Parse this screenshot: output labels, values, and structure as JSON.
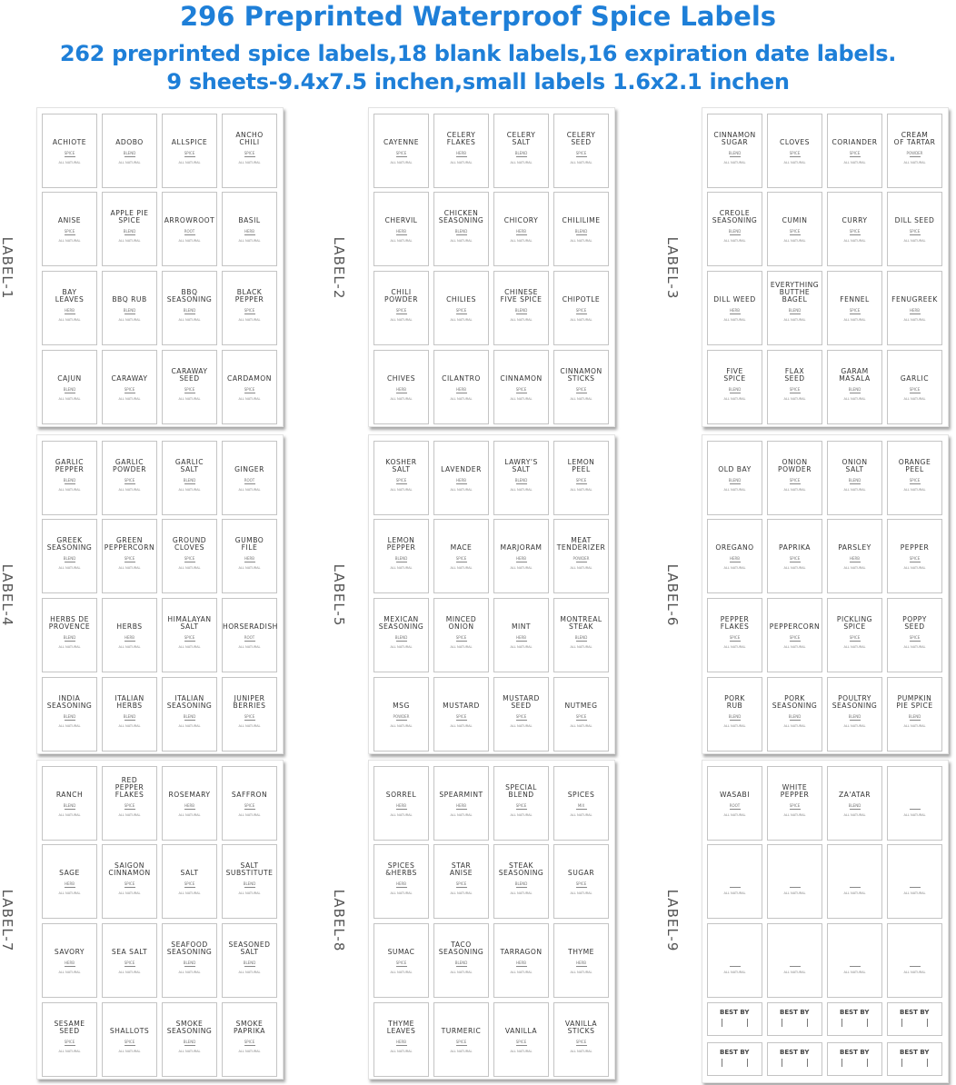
{
  "header": {
    "title": "296 Preprinted Waterproof Spice Labels",
    "subtitle1": "262 preprinted spice labels,18 blank labels,16 expiration date labels.",
    "subtitle2": "9 sheets-9.4x7.5 inchen,small labels 1.6x2.1 inchen",
    "color": "#1e7fd8"
  },
  "footer_text": "ALL NATURAL",
  "sheets": [
    {
      "label": "LABEL-1",
      "items": [
        {
          "name": "ACHIOTE",
          "type": "SPICE"
        },
        {
          "name": "ADOBO",
          "type": "BLEND"
        },
        {
          "name": "ALLSPICE",
          "type": "SPICE"
        },
        {
          "name": "ANCHO\nCHILI",
          "type": "SPICE"
        },
        {
          "name": "ANISE",
          "type": "SPICE"
        },
        {
          "name": "APPLE PIE\nSPICE",
          "type": "BLEND"
        },
        {
          "name": "ARROWROOT",
          "type": "ROOT"
        },
        {
          "name": "BASIL",
          "type": "HERB"
        },
        {
          "name": "BAY\nLEAVES",
          "type": "HERB"
        },
        {
          "name": "BBQ RUB",
          "type": "BLEND"
        },
        {
          "name": "BBQ\nSEASONING",
          "type": "BLEND"
        },
        {
          "name": "BLACK\nPEPPER",
          "type": "SPICE"
        },
        {
          "name": "CAJUN",
          "type": "BLEND"
        },
        {
          "name": "CARAWAY",
          "type": "SPICE"
        },
        {
          "name": "CARAWAY\nSEED",
          "type": "SPICE"
        },
        {
          "name": "CARDAMON",
          "type": "SPICE"
        }
      ]
    },
    {
      "label": "LABEL-2",
      "items": [
        {
          "name": "CAYENNE",
          "type": "SPICE"
        },
        {
          "name": "CELERY\nFLAKES",
          "type": "HERB"
        },
        {
          "name": "CELERY\nSALT",
          "type": "BLEND"
        },
        {
          "name": "CELERY\nSEED",
          "type": "SPICE"
        },
        {
          "name": "CHERVIL",
          "type": "HERB"
        },
        {
          "name": "CHICKEN\nSEASONING",
          "type": "BLEND"
        },
        {
          "name": "CHICORY",
          "type": "HERB"
        },
        {
          "name": "CHILILIME",
          "type": "BLEND"
        },
        {
          "name": "CHILI\nPOWDER",
          "type": "SPICE"
        },
        {
          "name": "CHILIES",
          "type": "SPICE"
        },
        {
          "name": "CHINESE\nFIVE SPICE",
          "type": "BLEND"
        },
        {
          "name": "CHIPOTLE",
          "type": "SPICE"
        },
        {
          "name": "CHIVES",
          "type": "HERB"
        },
        {
          "name": "CILANTRO",
          "type": "HERB"
        },
        {
          "name": "CINNAMON",
          "type": "SPICE"
        },
        {
          "name": "CINNAMON\nSTICKS",
          "type": "SPICE"
        }
      ]
    },
    {
      "label": "LABEL-3",
      "items": [
        {
          "name": "CINNAMON\nSUGAR",
          "type": "BLEND"
        },
        {
          "name": "CLOVES",
          "type": "SPICE"
        },
        {
          "name": "CORIANDER",
          "type": "SPICE"
        },
        {
          "name": "CREAM\nOF TARTAR",
          "type": "POWDER"
        },
        {
          "name": "CREOLE\nSEASONING",
          "type": "BLEND"
        },
        {
          "name": "CUMIN",
          "type": "SPICE"
        },
        {
          "name": "CURRY",
          "type": "SPICE"
        },
        {
          "name": "DILL SEED",
          "type": "SPICE"
        },
        {
          "name": "DILL WEED",
          "type": "HERB"
        },
        {
          "name": "EVERYTHING\nBUTTHE\nBAGEL",
          "type": "BLEND"
        },
        {
          "name": "FENNEL",
          "type": "SPICE"
        },
        {
          "name": "FENUGREEK",
          "type": "HERB"
        },
        {
          "name": "FIVE\nSPICE",
          "type": "BLEND"
        },
        {
          "name": "FLAX\nSEED",
          "type": "SPICE"
        },
        {
          "name": "GARAM\nMASALA",
          "type": "BLEND"
        },
        {
          "name": "GARLIC",
          "type": "SPICE"
        }
      ]
    },
    {
      "label": "LABEL-4",
      "items": [
        {
          "name": "GARLIC\nPEPPER",
          "type": "BLEND"
        },
        {
          "name": "GARLIC\nPOWDER",
          "type": "SPICE"
        },
        {
          "name": "GARLIC\nSALT",
          "type": "BLEND"
        },
        {
          "name": "GINGER",
          "type": "ROOT"
        },
        {
          "name": "GREEK\nSEASONING",
          "type": "BLEND"
        },
        {
          "name": "GREEN\nPEPPERCORN",
          "type": "SPICE"
        },
        {
          "name": "GROUND\nCLOVES",
          "type": "SPICE"
        },
        {
          "name": "GUMBO\nFILE",
          "type": "HERB"
        },
        {
          "name": "HERBS DE\nPROVENCE",
          "type": "BLEND"
        },
        {
          "name": "HERBS",
          "type": "HERB"
        },
        {
          "name": "HIMALAYAN\nSALT",
          "type": "SPICE"
        },
        {
          "name": "HORSERADISH",
          "type": "ROOT"
        },
        {
          "name": "INDIA\nSEASONING",
          "type": "BLEND"
        },
        {
          "name": "ITALIAN\nHERBS",
          "type": "BLEND"
        },
        {
          "name": "ITALIAN\nSEASONING",
          "type": "BLEND"
        },
        {
          "name": "JUNIPER\nBERRIES",
          "type": "SPICE"
        }
      ]
    },
    {
      "label": "LABEL-5",
      "items": [
        {
          "name": "KOSHER\nSALT",
          "type": "SPICE"
        },
        {
          "name": "LAVENDER",
          "type": "HERB"
        },
        {
          "name": "LAWRY'S\nSALT",
          "type": "BLEND"
        },
        {
          "name": "LEMON\nPEEL",
          "type": "SPICE"
        },
        {
          "name": "LEMON\nPEPPER",
          "type": "BLEND"
        },
        {
          "name": "MACE",
          "type": "SPICE"
        },
        {
          "name": "MARJORAM",
          "type": "HERB"
        },
        {
          "name": "MEAT\nTENDERIZER",
          "type": "POWDER"
        },
        {
          "name": "MEXICAN\nSEASONING",
          "type": "BLEND"
        },
        {
          "name": "MINCED\nONION",
          "type": "SPICE"
        },
        {
          "name": "MINT",
          "type": "HERB"
        },
        {
          "name": "MONTREAL\nSTEAK",
          "type": "BLEND"
        },
        {
          "name": "MSG",
          "type": "POWDER"
        },
        {
          "name": "MUSTARD",
          "type": "SPICE"
        },
        {
          "name": "MUSTARD\nSEED",
          "type": "SPICE"
        },
        {
          "name": "NUTMEG",
          "type": "SPICE"
        }
      ]
    },
    {
      "label": "LABEL-6",
      "items": [
        {
          "name": "OLD BAY",
          "type": "BLEND"
        },
        {
          "name": "ONION\nPOWDER",
          "type": "SPICE"
        },
        {
          "name": "ONION\nSALT",
          "type": "BLEND"
        },
        {
          "name": "ORANGE\nPEEL",
          "type": "SPICE"
        },
        {
          "name": "OREGANO",
          "type": "HERB"
        },
        {
          "name": "PAPRIKA",
          "type": "SPICE"
        },
        {
          "name": "PARSLEY",
          "type": "HERB"
        },
        {
          "name": "PEPPER",
          "type": "SPICE"
        },
        {
          "name": "PEPPER\nFLAKES",
          "type": "SPICE"
        },
        {
          "name": "PEPPERCORN",
          "type": "SPICE"
        },
        {
          "name": "PICKLING\nSPICE",
          "type": "SPICE"
        },
        {
          "name": "POPPY\nSEED",
          "type": "SPICE"
        },
        {
          "name": "PORK\nRUB",
          "type": "BLEND"
        },
        {
          "name": "PORK\nSEASONING",
          "type": "BLEND"
        },
        {
          "name": "POULTRY\nSEASONING",
          "type": "BLEND"
        },
        {
          "name": "PUMPKIN\nPIE SPICE",
          "type": "BLEND"
        }
      ]
    },
    {
      "label": "LABEL-7",
      "items": [
        {
          "name": "RANCH",
          "type": "BLEND"
        },
        {
          "name": "RED\nPEPPER\nFLAKES",
          "type": "SPICE"
        },
        {
          "name": "ROSEMARY",
          "type": "HERB"
        },
        {
          "name": "SAFFRON",
          "type": "SPICE"
        },
        {
          "name": "SAGE",
          "type": "HERB"
        },
        {
          "name": "SAIGON\nCINNAMON",
          "type": "SPICE"
        },
        {
          "name": "SALT",
          "type": "SPICE"
        },
        {
          "name": "SALT\nSUBSTITUTE",
          "type": "BLEND"
        },
        {
          "name": "SAVORY",
          "type": "HERB"
        },
        {
          "name": "SEA SALT",
          "type": "SPICE"
        },
        {
          "name": "SEAFOOD\nSEASONING",
          "type": "BLEND"
        },
        {
          "name": "SEASONED\nSALT",
          "type": "BLEND"
        },
        {
          "name": "SESAME\nSEED",
          "type": "SPICE"
        },
        {
          "name": "SHALLOTS",
          "type": "SPICE"
        },
        {
          "name": "SMOKE\nSEASONING",
          "type": "BLEND"
        },
        {
          "name": "SMOKE\nPAPRIKA",
          "type": "SPICE"
        }
      ]
    },
    {
      "label": "LABEL-8",
      "items": [
        {
          "name": "SORREL",
          "type": "HERB"
        },
        {
          "name": "SPEARMINT",
          "type": "HERB"
        },
        {
          "name": "SPECIAL\nBLEND",
          "type": "SPICE"
        },
        {
          "name": "SPICES",
          "type": "MIX"
        },
        {
          "name": "SPICES\n&HERBS",
          "type": "HERB"
        },
        {
          "name": "STAR\nANISE",
          "type": "SPICE"
        },
        {
          "name": "STEAK\nSEASONING",
          "type": "BLEND"
        },
        {
          "name": "SUGAR",
          "type": "SPICE"
        },
        {
          "name": "SUMAC",
          "type": "SPICE"
        },
        {
          "name": "TACO\nSEASONING",
          "type": "BLEND"
        },
        {
          "name": "TARRAGON",
          "type": "HERB"
        },
        {
          "name": "THYME",
          "type": "HERB"
        },
        {
          "name": "THYME\nLEAVES",
          "type": "HERB"
        },
        {
          "name": "TURMERIC",
          "type": "SPICE"
        },
        {
          "name": "VANILLA",
          "type": "SPICE"
        },
        {
          "name": "VANILLA\nSTICKS",
          "type": "SPICE"
        }
      ]
    },
    {
      "label": "LABEL-9",
      "items": [
        {
          "name": "WASABI",
          "type": "ROOT"
        },
        {
          "name": "WHITE\nPEPPER",
          "type": "SPICE"
        },
        {
          "name": "ZA'ATAR",
          "type": "BLEND"
        },
        {
          "name": "",
          "type": ""
        },
        {
          "name": "",
          "type": ""
        },
        {
          "name": "",
          "type": ""
        },
        {
          "name": "",
          "type": ""
        },
        {
          "name": "",
          "type": ""
        },
        {
          "name": "",
          "type": ""
        },
        {
          "name": "",
          "type": ""
        },
        {
          "name": "",
          "type": ""
        },
        {
          "name": "",
          "type": ""
        }
      ],
      "best_by": [
        "BEST BY",
        "BEST BY",
        "BEST BY",
        "BEST BY",
        "BEST BY",
        "BEST BY",
        "BEST BY",
        "BEST BY"
      ]
    }
  ]
}
